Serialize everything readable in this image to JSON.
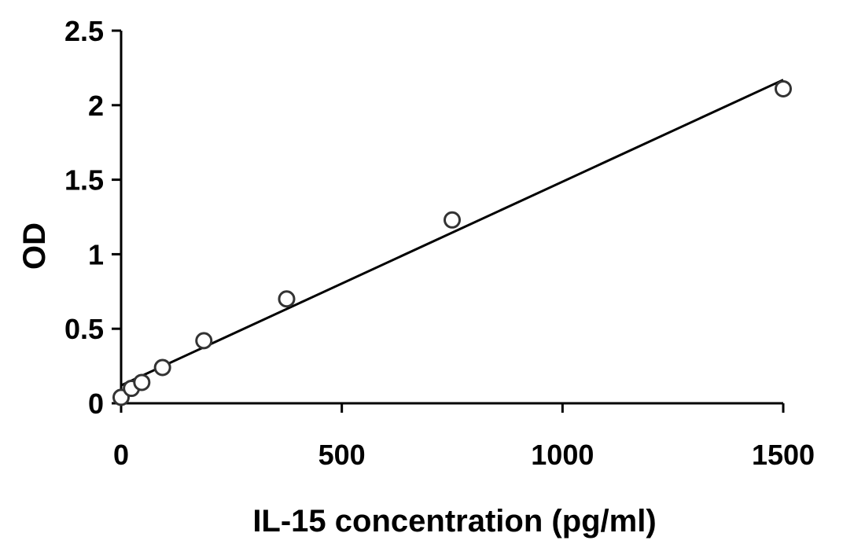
{
  "chart_data": {
    "type": "scatter",
    "title": "",
    "xlabel": "IL-15 concentration (pg/ml)",
    "ylabel": "OD",
    "xlim": [
      0,
      1500
    ],
    "ylim": [
      0,
      2.5
    ],
    "x_ticks": [
      0,
      500,
      1000,
      1500
    ],
    "x_tick_labels": [
      "0",
      "500",
      "1000",
      "1500"
    ],
    "y_ticks": [
      0,
      0.5,
      1,
      1.5,
      2,
      2.5
    ],
    "y_tick_labels": [
      "0",
      "0.5",
      "1",
      "1.5",
      "2",
      "2.5"
    ],
    "grid": false,
    "legend": "none",
    "marker": "open-circle",
    "colors": {
      "axis": "#000000",
      "marker_stroke": "#333333",
      "marker_fill": "#ffffff",
      "trendline": "#000000"
    },
    "series": [
      {
        "x": [
          0,
          23.4,
          46.9,
          93.8,
          187.5,
          375,
          750,
          1500
        ],
        "y": [
          0.04,
          0.1,
          0.14,
          0.24,
          0.42,
          0.7,
          1.23,
          2.11
        ]
      }
    ],
    "trendline": {
      "type": "linear",
      "x": [
        0,
        1500
      ],
      "y": [
        0.12,
        2.17
      ]
    }
  }
}
